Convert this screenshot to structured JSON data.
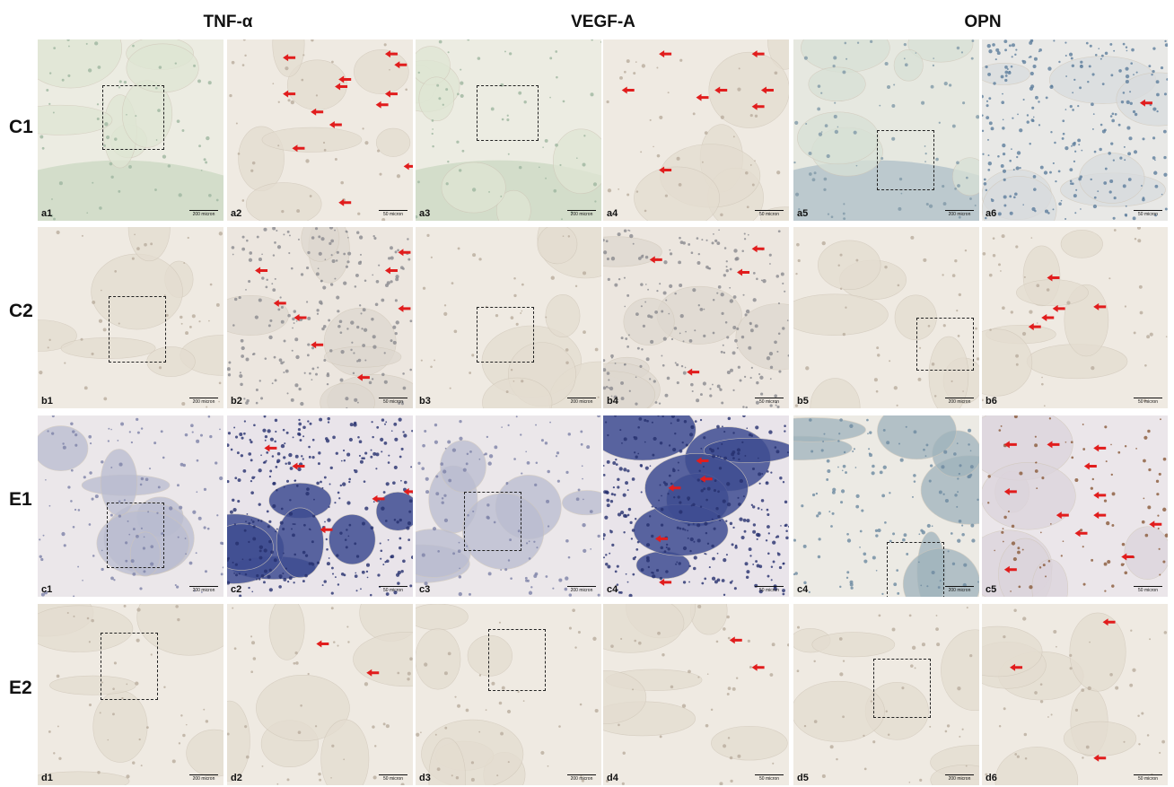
{
  "columns": [
    "TNF-α",
    "VEGF-A",
    "OPN"
  ],
  "rows": [
    "C1",
    "C2",
    "E1",
    "E2"
  ],
  "scale_bars": {
    "low_mag": "200 micron",
    "high_mag": "50 micron"
  },
  "panels": [
    [
      {
        "label": "a1",
        "mag": "low",
        "tone": "green"
      },
      {
        "label": "a2",
        "mag": "high",
        "tone": "pale"
      },
      {
        "label": "a3",
        "mag": "low",
        "tone": "green"
      },
      {
        "label": "a4",
        "mag": "high",
        "tone": "pale"
      },
      {
        "label": "a5",
        "mag": "low",
        "tone": "bluegreen"
      },
      {
        "label": "a6",
        "mag": "high",
        "tone": "bluecell"
      }
    ],
    [
      {
        "label": "b1",
        "mag": "low",
        "tone": "pale"
      },
      {
        "label": "b2",
        "mag": "high",
        "tone": "cellular"
      },
      {
        "label": "b3",
        "mag": "low",
        "tone": "pale"
      },
      {
        "label": "b4",
        "mag": "high",
        "tone": "cellular"
      },
      {
        "label": "b5",
        "mag": "low",
        "tone": "pale"
      },
      {
        "label": "b6",
        "mag": "high",
        "tone": "pale"
      }
    ],
    [
      {
        "label": "c1",
        "mag": "low",
        "tone": "marrow"
      },
      {
        "label": "c2",
        "mag": "high",
        "tone": "densemarrow"
      },
      {
        "label": "c3",
        "mag": "low",
        "tone": "marrow"
      },
      {
        "label": "c4",
        "mag": "high",
        "tone": "densemarrow"
      },
      {
        "label": "c4",
        "mag": "low",
        "tone": "marrowgreen"
      },
      {
        "label": "c5",
        "mag": "high",
        "tone": "stained"
      }
    ],
    [
      {
        "label": "d1",
        "mag": "low",
        "tone": "pale"
      },
      {
        "label": "d2",
        "mag": "high",
        "tone": "pale"
      },
      {
        "label": "d3",
        "mag": "low",
        "tone": "pale"
      },
      {
        "label": "d4",
        "mag": "high",
        "tone": "pale"
      },
      {
        "label": "d5",
        "mag": "low",
        "tone": "pale"
      },
      {
        "label": "d6",
        "mag": "high",
        "tone": "pale"
      }
    ]
  ],
  "colors": {
    "arrow": "#e11d1d",
    "roi_border": "#222222"
  }
}
